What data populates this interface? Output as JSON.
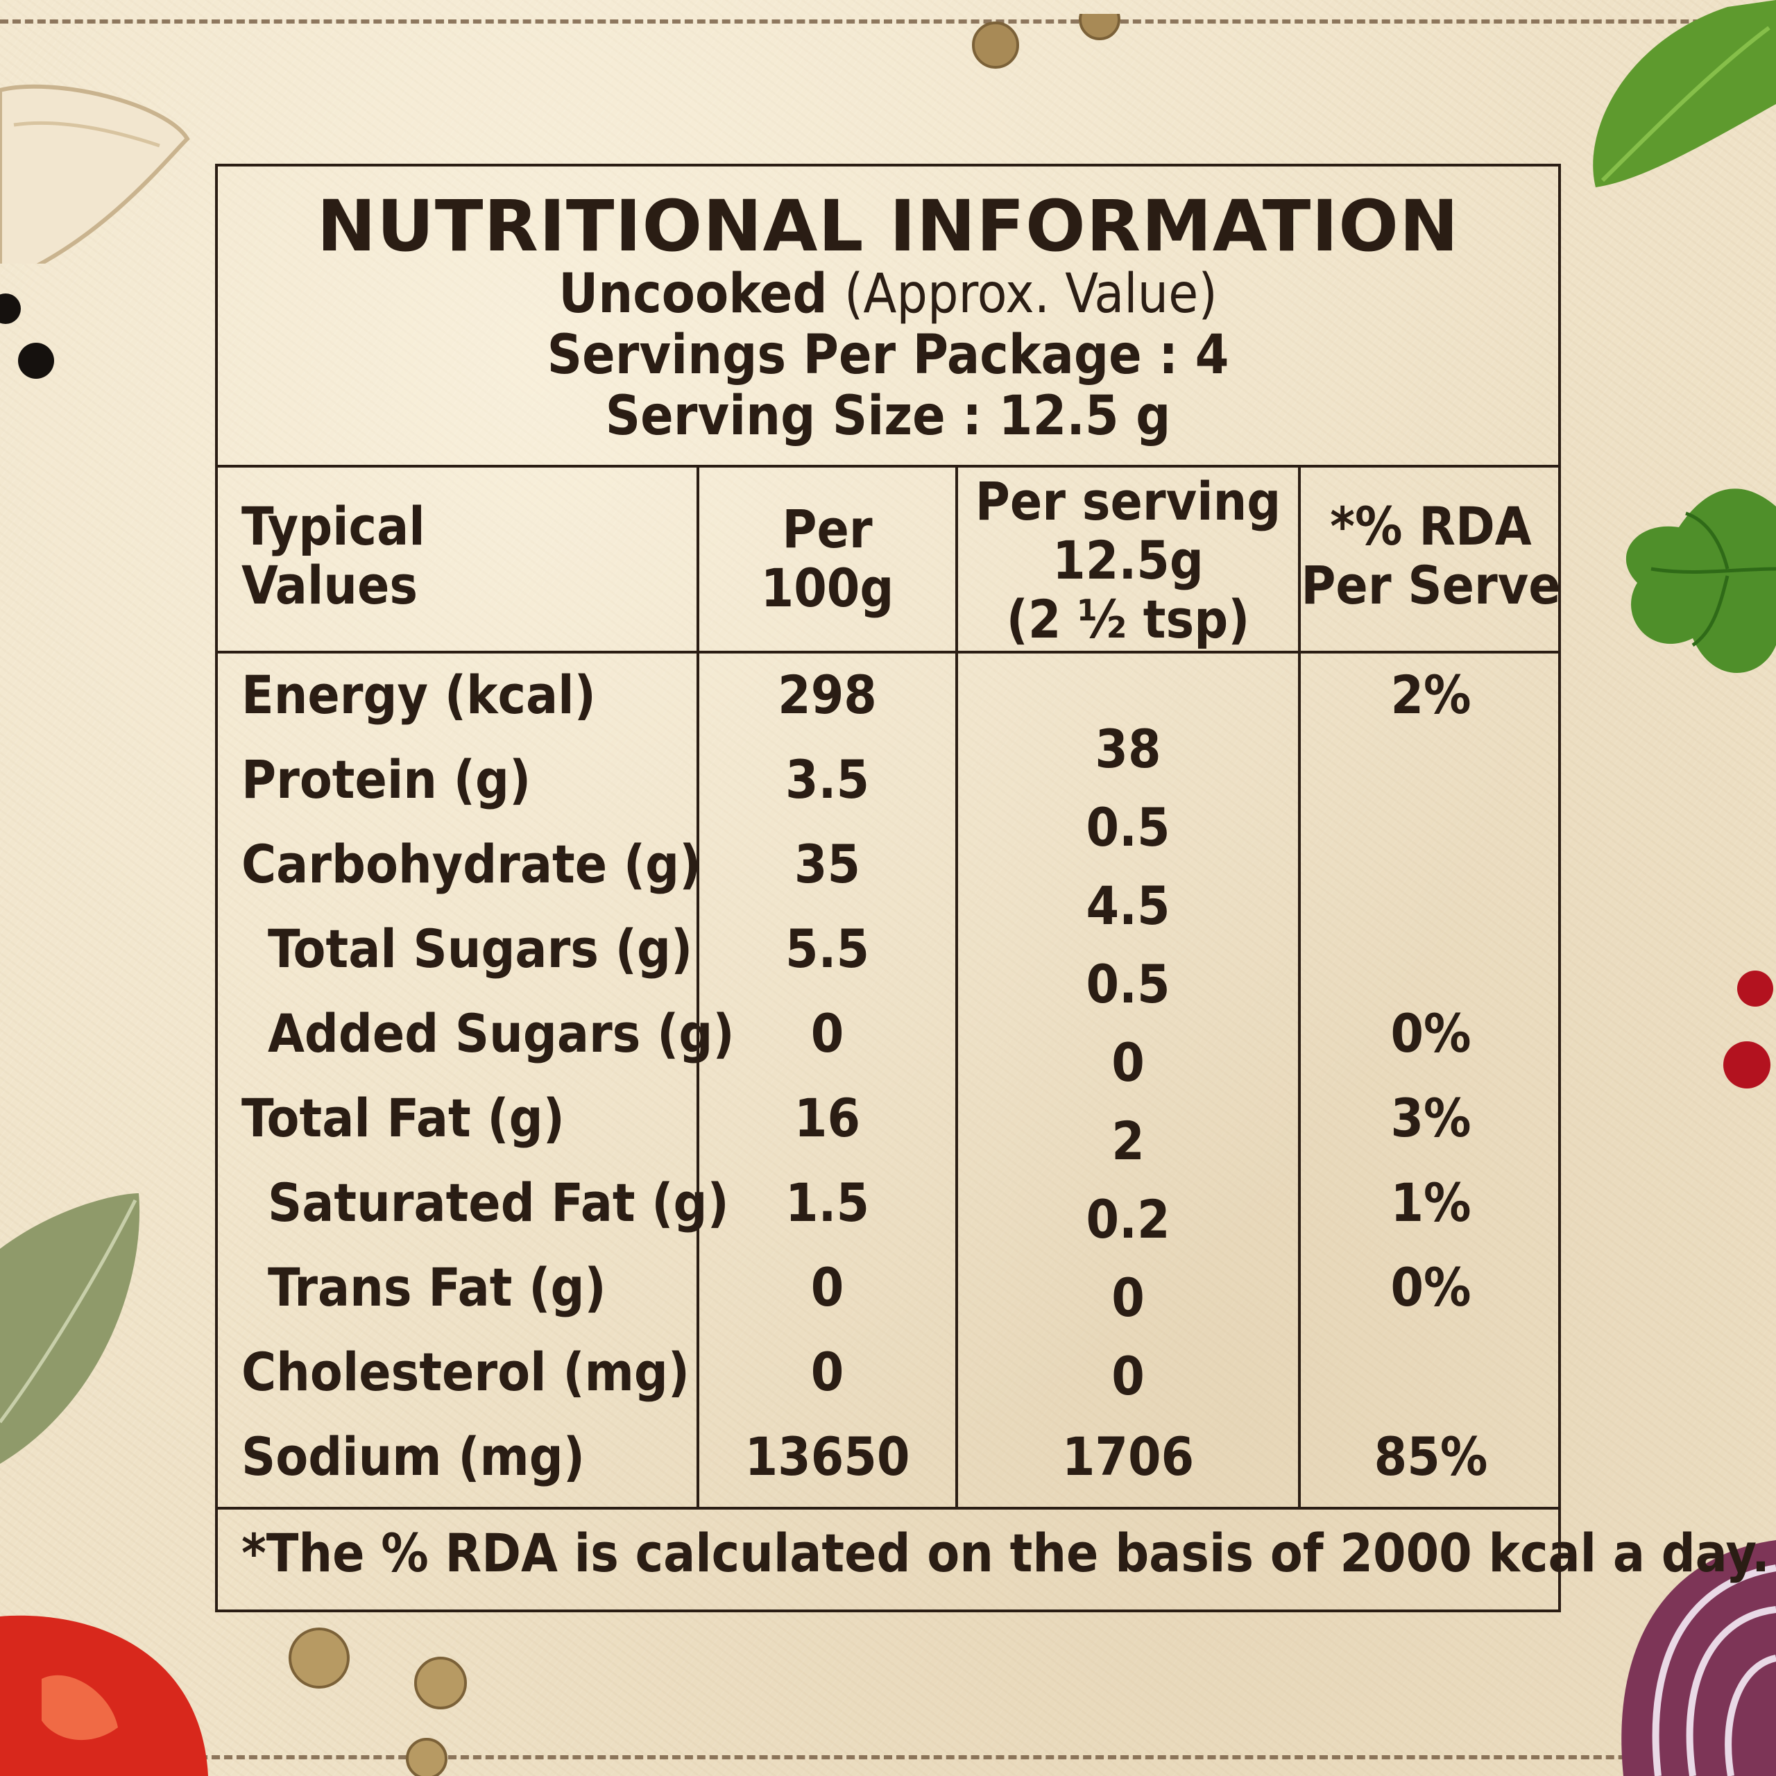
{
  "header": {
    "title": "NUTRITIONAL INFORMATION",
    "uncooked": "Uncooked",
    "approx": "(Approx. Value)",
    "servings_per_package": "Servings Per Package : 4",
    "serving_size": "Serving Size : 12.5 g"
  },
  "columns": {
    "typical_values": [
      "Typical",
      "Values"
    ],
    "per_100g": [
      "Per",
      "100g"
    ],
    "per_serving": [
      "Per serving",
      "12.5g",
      "(2 ½ tsp)"
    ],
    "rda": [
      "*% RDA",
      "Per Serve"
    ]
  },
  "nutrients": [
    {
      "name": "Energy (kcal)",
      "indent": false,
      "per100g": "298",
      "rda": "2%"
    },
    {
      "name": "Protein (g)",
      "indent": false,
      "per100g": "3.5",
      "rda": ""
    },
    {
      "name": "Carbohydrate (g)",
      "indent": false,
      "per100g": "35",
      "rda": ""
    },
    {
      "name": "Total Sugars (g)",
      "indent": true,
      "per100g": "5.5",
      "rda": ""
    },
    {
      "name": "Added Sugars (g)",
      "indent": true,
      "per100g": "0",
      "rda": "0%"
    },
    {
      "name": "Total Fat (g)",
      "indent": false,
      "per100g": "16",
      "rda": "3%"
    },
    {
      "name": "Saturated Fat (g)",
      "indent": true,
      "per100g": "1.5",
      "rda": "1%"
    },
    {
      "name": "Trans Fat (g)",
      "indent": true,
      "per100g": "0",
      "rda": "0%"
    },
    {
      "name": "Cholesterol (mg)",
      "indent": false,
      "per100g": "0",
      "rda": ""
    },
    {
      "name": "Sodium (mg)",
      "indent": false,
      "per100g": "13650",
      "rda": "85%"
    }
  ],
  "per_serving_values": [
    "38",
    "0.5",
    "4.5",
    "0.5",
    "0",
    "2",
    "0.2",
    "0",
    "0",
    "1706"
  ],
  "footnote": "*The % RDA is calculated on the basis of 2000 kcal a day.",
  "colors": {
    "ink": "#2a1d14",
    "paper": "#efe2c7"
  }
}
